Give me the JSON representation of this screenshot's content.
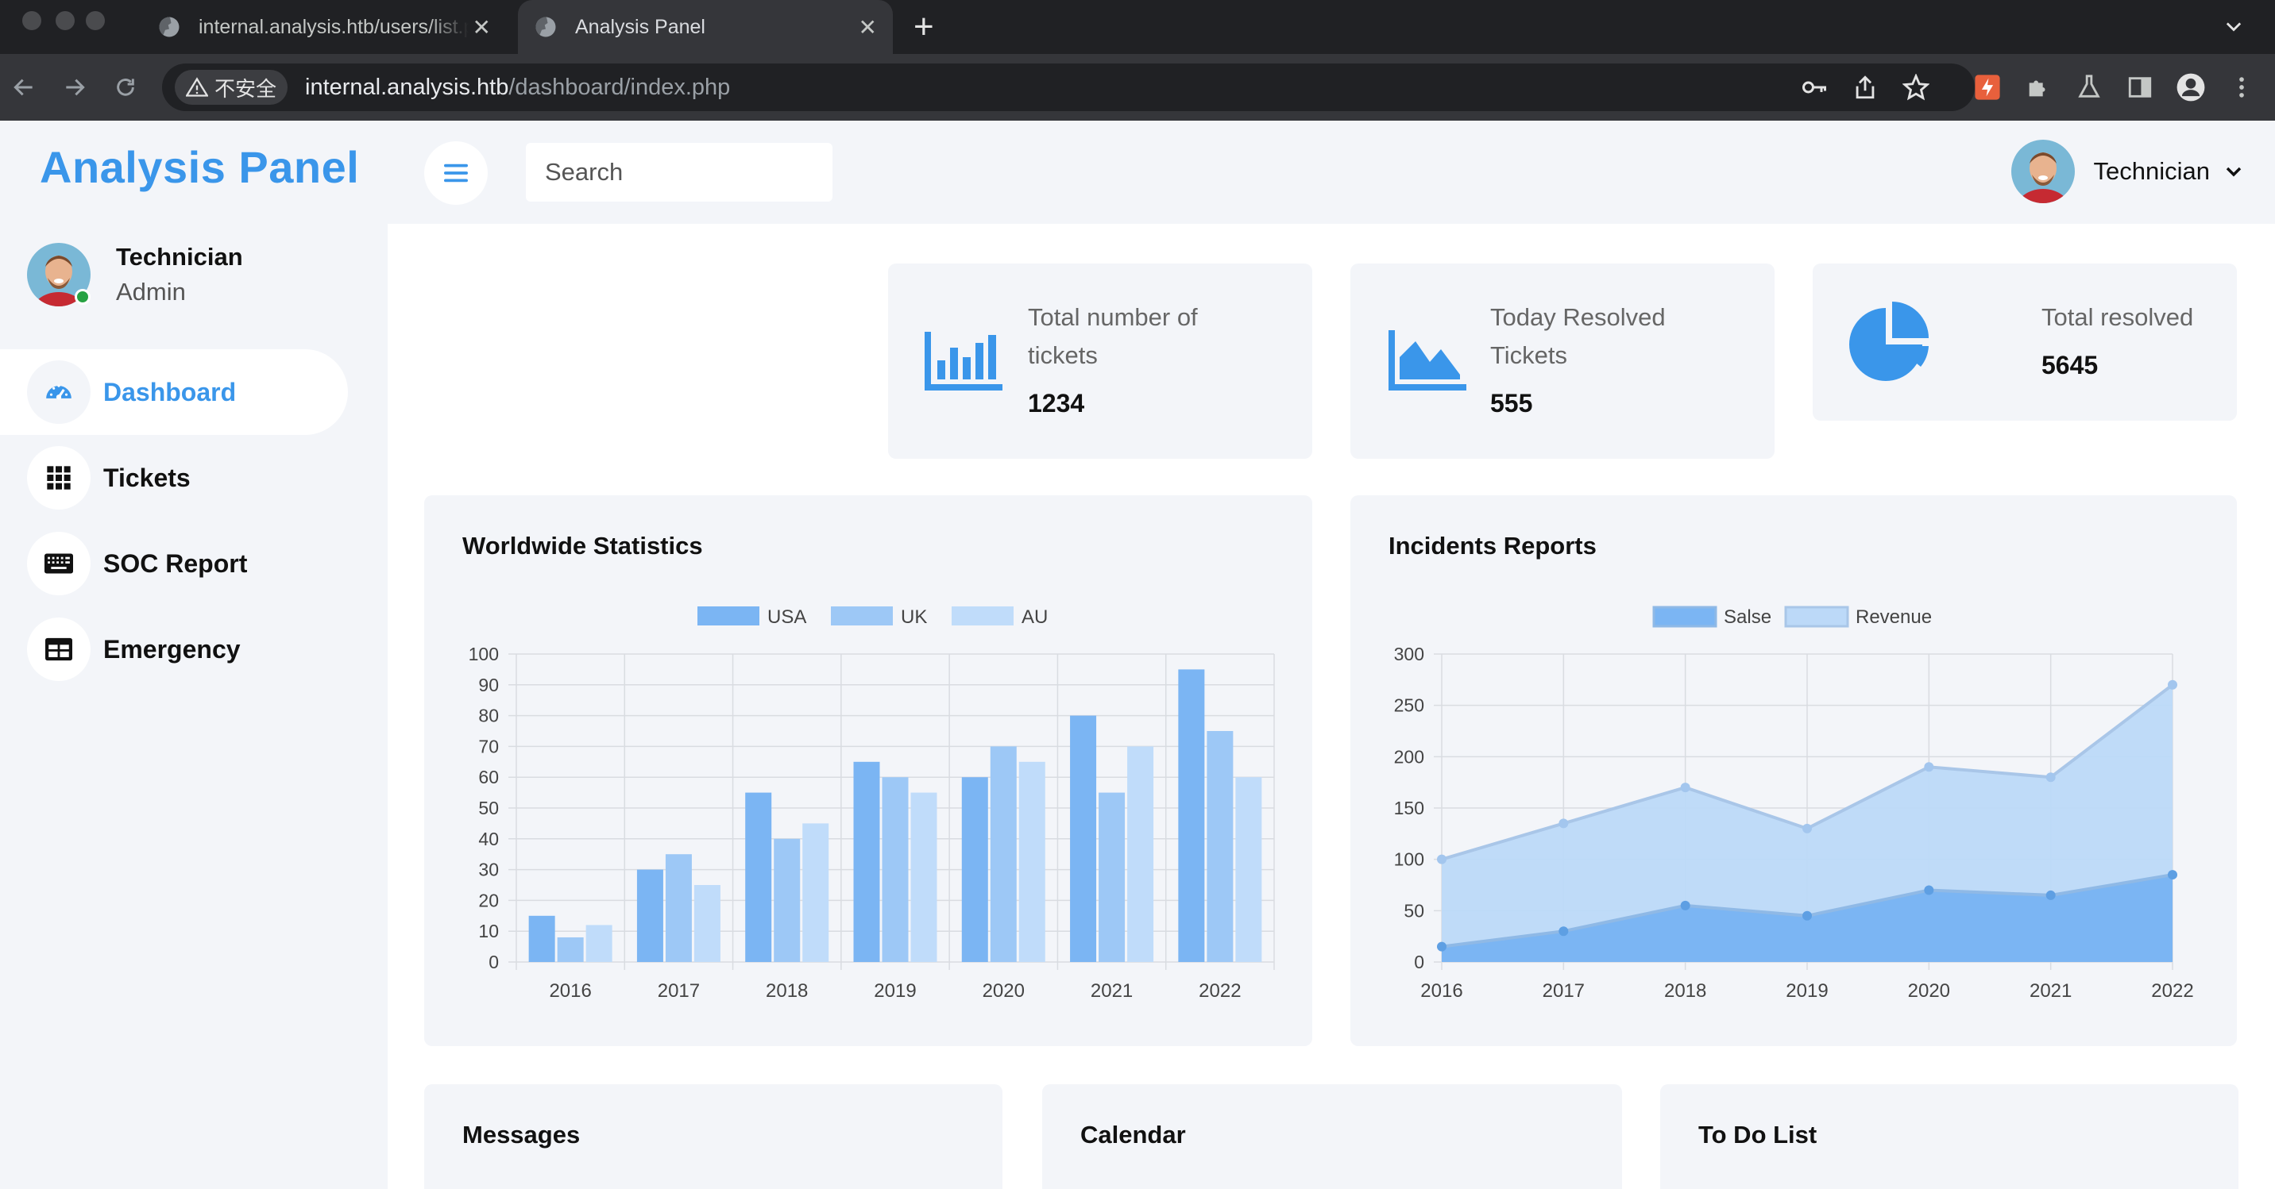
{
  "browser": {
    "tabs": [
      {
        "title": "internal.analysis.htb/users/list.php",
        "active": false
      },
      {
        "title": "Analysis Panel",
        "active": true
      }
    ],
    "security_label": "不安全",
    "url_host": "internal.analysis.htb",
    "url_path": "/dashboard/index.php"
  },
  "sidebar": {
    "brand": "Analysis Panel",
    "user_name": "Technician",
    "user_role": "Admin",
    "items": [
      {
        "label": "Dashboard",
        "icon": "gauge-icon",
        "active": true
      },
      {
        "label": "Tickets",
        "icon": "grid-icon",
        "active": false
      },
      {
        "label": "SOC Report",
        "icon": "keyboard-icon",
        "active": false
      },
      {
        "label": "Emergency",
        "icon": "table-icon",
        "active": false
      }
    ]
  },
  "topbar": {
    "search_placeholder": "Search",
    "user_name": "Technician"
  },
  "stats": [
    {
      "label_line1": "Total number of",
      "label_line2": "tickets",
      "value": "1234",
      "icon": "bar-chart-icon"
    },
    {
      "label_line1": "Today Resolved",
      "label_line2": "Tickets",
      "value": "555",
      "icon": "area-chart-icon"
    },
    {
      "label_line1": "Total resolved",
      "value": "5645",
      "icon": "pie-chart-icon"
    }
  ],
  "panels": {
    "worldwide_title": "Worldwide Statistics",
    "incidents_title": "Incidents Reports",
    "messages_title": "Messages",
    "calendar_title": "Calendar",
    "todo_title": "To Do List"
  },
  "colors": {
    "accent": "#3a96ea",
    "usa": "#7bb5f3",
    "uk": "#9dc8f6",
    "au": "#c0dcfa",
    "salse_fill": "#7bb5f3",
    "revenue_fill": "#bcd9f8",
    "panel_bg": "#f3f5f9"
  },
  "chart_data": [
    {
      "type": "bar",
      "title": "Worldwide Statistics",
      "categories": [
        "2016",
        "2017",
        "2018",
        "2019",
        "2020",
        "2021",
        "2022"
      ],
      "series": [
        {
          "name": "USA",
          "values": [
            15,
            30,
            55,
            65,
            60,
            80,
            95
          ]
        },
        {
          "name": "UK",
          "values": [
            8,
            35,
            40,
            60,
            70,
            55,
            75
          ]
        },
        {
          "name": "AU",
          "values": [
            12,
            25,
            45,
            55,
            65,
            70,
            60
          ]
        }
      ],
      "ylim": [
        0,
        100
      ],
      "yticks": [
        "0",
        "10",
        "20",
        "30",
        "40",
        "50",
        "60",
        "70",
        "80",
        "90",
        "100"
      ],
      "grid": true,
      "legend": "top-center"
    },
    {
      "type": "area",
      "title": "Incidents Reports",
      "categories": [
        "2016",
        "2017",
        "2018",
        "2019",
        "2020",
        "2021",
        "2022"
      ],
      "series": [
        {
          "name": "Salse",
          "values": [
            15,
            30,
            55,
            45,
            70,
            65,
            85
          ]
        },
        {
          "name": "Revenue",
          "values": [
            100,
            135,
            170,
            130,
            190,
            180,
            270
          ]
        }
      ],
      "ylim": [
        0,
        300
      ],
      "yticks": [
        "0",
        "50",
        "100",
        "150",
        "200",
        "250",
        "300"
      ],
      "grid": true,
      "legend": "top-center"
    }
  ]
}
